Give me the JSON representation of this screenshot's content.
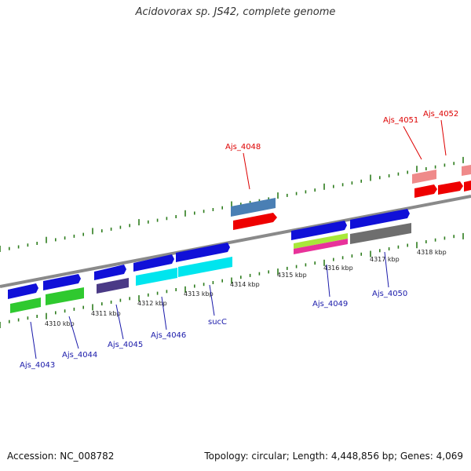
{
  "title": "Acidovorax sp. JS42, complete genome",
  "accession": "Accession: NC_008782",
  "summary": "Topology: circular; Length: 4,448,856 bp; Genes: 4,069",
  "colors": {
    "backbone": "#8a8a8a",
    "tick": "#2e7d1e",
    "top_label": "#dd0000",
    "bottom_label": "#1a1aaa"
  },
  "kbp_labels": [
    "4310 kbp",
    "4311 kbp",
    "4312 kbp",
    "4313 kbp",
    "4314 kbp",
    "4315 kbp",
    "4316 kbp",
    "4317 kbp",
    "4318 kbp"
  ],
  "gene_labels": {
    "top": [
      "Ajs_4048",
      "Ajs_4051",
      "Ajs_4052"
    ],
    "bottom": [
      "Ajs_4043",
      "Ajs_4044",
      "Ajs_4045",
      "Ajs_4046",
      "sucC",
      "Ajs_4049",
      "Ajs_4050"
    ]
  }
}
